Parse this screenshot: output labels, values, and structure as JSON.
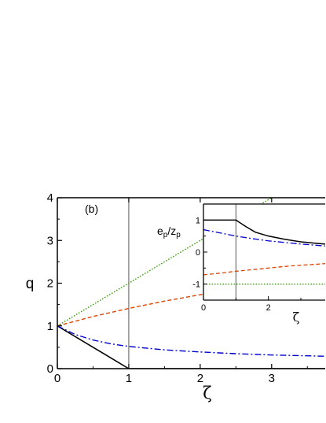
{
  "chart_data": [
    {
      "type": "line",
      "panel_label": "(b)",
      "xlabel": "ζ",
      "ylabel": "q",
      "xlim": [
        0,
        3.75
      ],
      "ylim": [
        0,
        4
      ],
      "xticks": [
        "0",
        "1",
        "2",
        "3"
      ],
      "yticks": [
        "0",
        "1",
        "2",
        "3",
        "4"
      ],
      "vline": 1,
      "series": [
        {
          "color": "#000000",
          "style": "solid",
          "x": [
            0,
            1,
            1.05,
            3.75
          ],
          "y": [
            1,
            0,
            0,
            0
          ]
        },
        {
          "color": "#0000cc",
          "style": "dashdot",
          "x": [
            0,
            0.25,
            0.5,
            0.75,
            1,
            1.5,
            2,
            2.5,
            3,
            3.5,
            3.75
          ],
          "y": [
            1,
            0.8,
            0.67,
            0.58,
            0.52,
            0.44,
            0.39,
            0.35,
            0.32,
            0.3,
            0.29
          ]
        },
        {
          "color": "#dd4400",
          "style": "dashed",
          "x": [
            0,
            0.5,
            1,
            1.5,
            2,
            2.5,
            3,
            3.5,
            3.75
          ],
          "y": [
            1,
            1.22,
            1.41,
            1.58,
            1.73,
            1.87,
            2.0,
            2.12,
            2.18
          ]
        },
        {
          "color": "#339900",
          "style": "dotted",
          "x": [
            0,
            3.75
          ],
          "y": [
            1,
            4.75
          ]
        }
      ]
    },
    {
      "type": "line",
      "ylabel": "e_p/z_p",
      "xlabel": "ζ",
      "xlim": [
        0,
        3.75
      ],
      "ylim": [
        -1.5,
        1.5
      ],
      "xticks": [
        "0",
        "2"
      ],
      "yticks": [
        "1",
        "0",
        "-1"
      ],
      "vline": 1,
      "series": [
        {
          "color": "#000000",
          "style": "solid",
          "x": [
            0,
            1,
            1.3,
            1.6,
            2,
            2.5,
            3,
            3.5,
            3.75
          ],
          "y": [
            1,
            1,
            0.8,
            0.62,
            0.5,
            0.4,
            0.32,
            0.27,
            0.25
          ]
        },
        {
          "color": "#0000cc",
          "style": "dashdot",
          "x": [
            0,
            0.5,
            1,
            1.5,
            2,
            2.5,
            3,
            3.5,
            3.75
          ],
          "y": [
            0.7,
            0.6,
            0.5,
            0.42,
            0.35,
            0.3,
            0.25,
            0.21,
            0.19
          ]
        },
        {
          "color": "#dd4400",
          "style": "dashed",
          "x": [
            0,
            0.5,
            1,
            1.5,
            2,
            2.5,
            3,
            3.5,
            3.75
          ],
          "y": [
            -0.71,
            -0.66,
            -0.6,
            -0.55,
            -0.5,
            -0.45,
            -0.41,
            -0.38,
            -0.36
          ]
        },
        {
          "color": "#339900",
          "style": "dotted",
          "x": [
            0,
            3.75
          ],
          "y": [
            -1,
            -1
          ]
        }
      ]
    }
  ]
}
